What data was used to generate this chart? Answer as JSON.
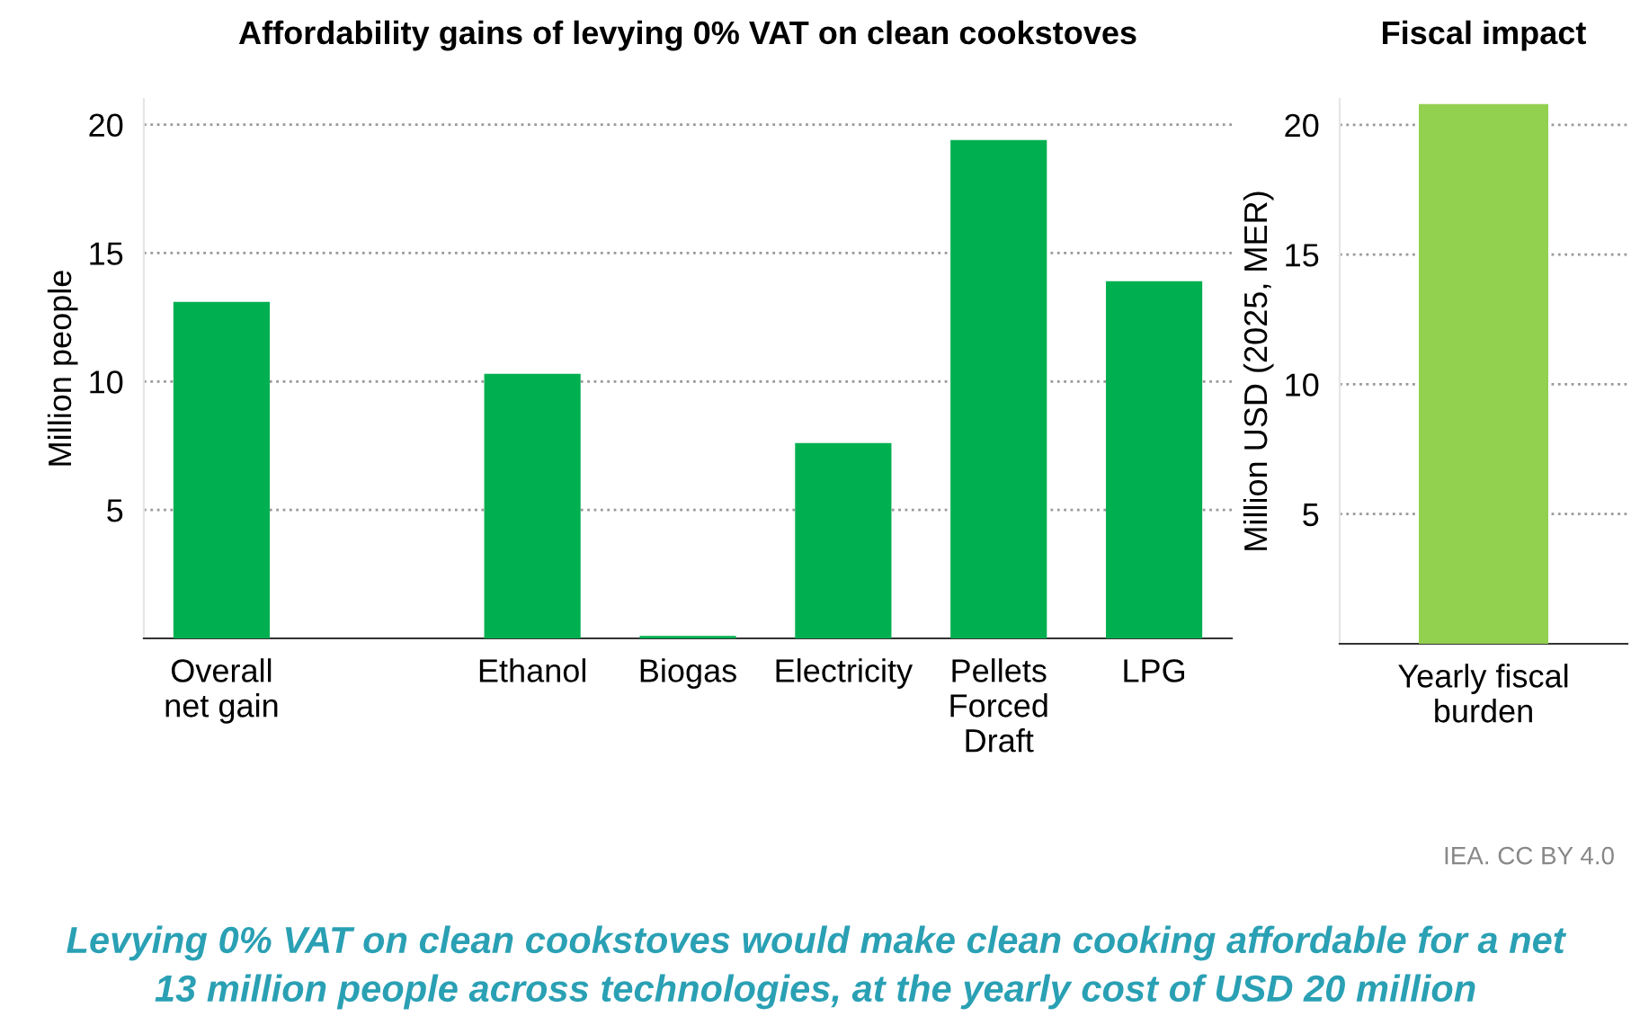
{
  "chart_data": [
    {
      "type": "bar",
      "title": "Affordability gains of levying 0% VAT on clean cookstoves",
      "ylabel": "Million people",
      "categories": [
        "Overall\nnet gain",
        null,
        "Ethanol",
        "Biogas",
        "Electricity",
        "Pellets\nForced\nDraft",
        "LPG"
      ],
      "values": [
        13.1,
        null,
        10.3,
        0.1,
        7.6,
        19.4,
        13.9
      ],
      "color": "#00b050",
      "ylim": [
        0,
        21
      ],
      "yticks": [
        5,
        10,
        15,
        20
      ],
      "grid": "y",
      "line_style": "dotted"
    },
    {
      "type": "bar",
      "title": "Fiscal impact",
      "ylabel": "Million USD (2025, MER)",
      "categories": [
        "Yearly fiscal\nburden"
      ],
      "values": [
        20.8
      ],
      "color": "#92d050",
      "ylim": [
        0,
        21
      ],
      "yticks": [
        5,
        10,
        15,
        20
      ],
      "grid": "y",
      "line_style": "dotted",
      "annotations": [
        "IEA. CC BY 4.0",
        "Levying 0% VAT on clean cookstoves would make clean cooking affordable for a net\n13 million people across technologies, at the yearly cost of USD 20 million"
      ]
    }
  ]
}
